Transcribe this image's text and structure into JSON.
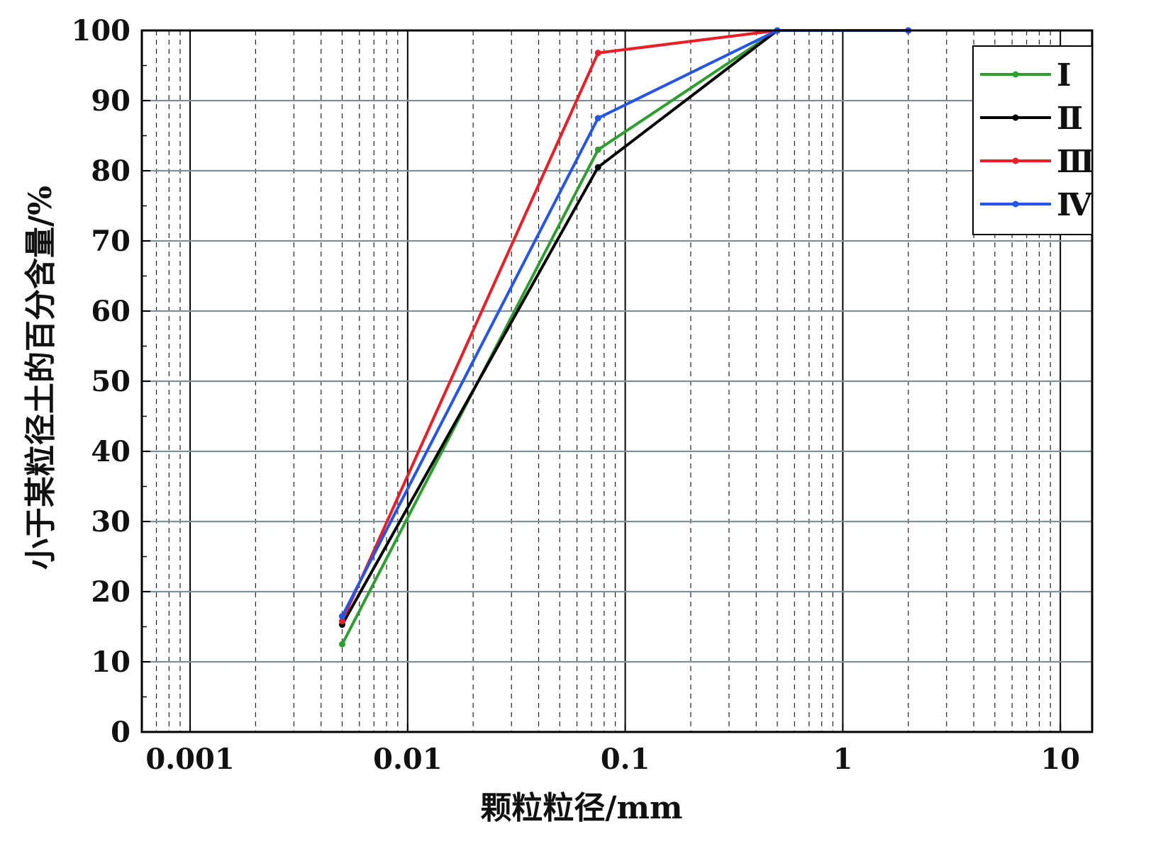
{
  "chart_data": {
    "type": "line",
    "xscale": "log",
    "xlim": [
      0.0006,
      14
    ],
    "ylim": [
      0,
      100
    ],
    "xticks": [
      0.001,
      0.01,
      0.1,
      1,
      10
    ],
    "xtick_labels": [
      "0.001",
      "0.01",
      "0.1",
      "1",
      "10"
    ],
    "yticks": [
      0,
      10,
      20,
      30,
      40,
      50,
      60,
      70,
      80,
      90,
      100
    ],
    "ytick_labels": [
      "0",
      "10",
      "20",
      "30",
      "40",
      "50",
      "60",
      "70",
      "80",
      "90",
      "100"
    ],
    "xlabel": "颗粒粒径/mm",
    "ylabel": "小于某粒径土的百分含量/%",
    "grid": true,
    "legend_position": "top-right",
    "series": [
      {
        "name": "Ⅰ",
        "color": "#2ca02c",
        "x": [
          0.005,
          0.075,
          0.5,
          2
        ],
        "y": [
          12.5,
          83,
          100,
          100
        ]
      },
      {
        "name": "Ⅱ",
        "color": "#000000",
        "x": [
          0.005,
          0.075,
          0.5,
          2
        ],
        "y": [
          15.3,
          80.5,
          100,
          100
        ]
      },
      {
        "name": "Ⅲ",
        "color": "#ee1c24",
        "x": [
          0.005,
          0.075,
          0.5,
          2
        ],
        "y": [
          15.8,
          96.8,
          100,
          100
        ]
      },
      {
        "name": "Ⅳ",
        "color": "#2255ee",
        "x": [
          0.005,
          0.075,
          0.5,
          2
        ],
        "y": [
          16.5,
          87.5,
          100,
          100
        ]
      }
    ]
  }
}
